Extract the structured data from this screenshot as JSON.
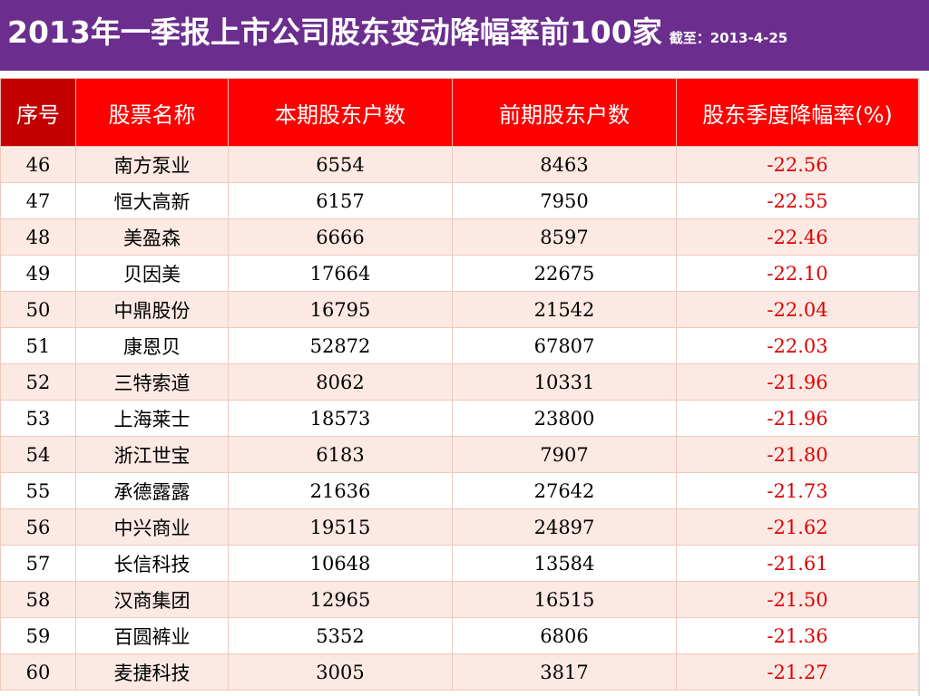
{
  "header": {
    "title": "2013年一季报上市公司股东变动降幅率前100家",
    "date": "截至：2013-4-25"
  },
  "table": {
    "columns": [
      "序号",
      "股票名称",
      "本期股东户数",
      "前期股东户数",
      "股东季度降幅率(%)"
    ],
    "rows": [
      {
        "no": "46",
        "name": "南方泵业",
        "current": "6554",
        "previous": "8463",
        "rate": "-22.56"
      },
      {
        "no": "47",
        "name": "恒大高新",
        "current": "6157",
        "previous": "7950",
        "rate": "-22.55"
      },
      {
        "no": "48",
        "name": "美盈森",
        "current": "6666",
        "previous": "8597",
        "rate": "-22.46"
      },
      {
        "no": "49",
        "name": "贝因美",
        "current": "17664",
        "previous": "22675",
        "rate": "-22.10"
      },
      {
        "no": "50",
        "name": "中鼎股份",
        "current": "16795",
        "previous": "21542",
        "rate": "-22.04"
      },
      {
        "no": "51",
        "name": "康恩贝",
        "current": "52872",
        "previous": "67807",
        "rate": "-22.03"
      },
      {
        "no": "52",
        "name": "三特索道",
        "current": "8062",
        "previous": "10331",
        "rate": "-21.96"
      },
      {
        "no": "53",
        "name": "上海莱士",
        "current": "18573",
        "previous": "23800",
        "rate": "-21.96"
      },
      {
        "no": "54",
        "name": "浙江世宝",
        "current": "6183",
        "previous": "7907",
        "rate": "-21.80"
      },
      {
        "no": "55",
        "name": "承德露露",
        "current": "21636",
        "previous": "27642",
        "rate": "-21.73"
      },
      {
        "no": "56",
        "name": "中兴商业",
        "current": "19515",
        "previous": "24897",
        "rate": "-21.62"
      },
      {
        "no": "57",
        "name": "长信科技",
        "current": "10648",
        "previous": "13584",
        "rate": "-21.61"
      },
      {
        "no": "58",
        "name": "汉商集团",
        "current": "12965",
        "previous": "16515",
        "rate": "-21.50"
      },
      {
        "no": "59",
        "name": "百圆裤业",
        "current": "5352",
        "previous": "6806",
        "rate": "-21.36"
      },
      {
        "no": "60",
        "name": "麦捷科技",
        "current": "3005",
        "previous": "3817",
        "rate": "-21.27"
      }
    ]
  },
  "colors": {
    "banner": "#6b2e8e",
    "header_red": "#ff0000",
    "header_dark_red": "#c30000",
    "row_pink": "#fce9e3",
    "rate_red": "#e00000"
  }
}
